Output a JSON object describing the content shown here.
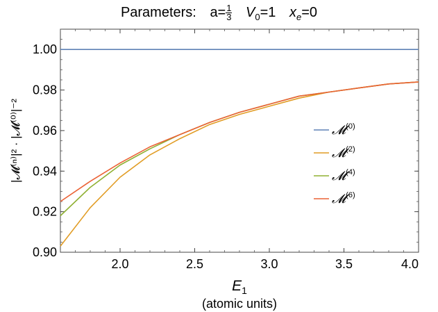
{
  "title": {
    "label": "Parameters:",
    "a_label": "a=",
    "a_num": "1",
    "a_den": "3",
    "v_sym": "V",
    "v_sub": "0",
    "v_val": "=1",
    "x_sym": "x",
    "x_sub": "e",
    "x_val": "=0"
  },
  "chart_data": {
    "type": "line",
    "xlabel": "E",
    "xlabel_sub": "1",
    "xlabel_units": "(atomic units)",
    "ylabel": "|𝓜⁽ⁿ⁾|² · |𝓜⁽⁰⁾|⁻²",
    "xlim": [
      1.6,
      4.0
    ],
    "ylim": [
      0.9,
      1.01
    ],
    "xticks": [
      "2.0",
      "2.5",
      "3.0",
      "3.5",
      "4.0"
    ],
    "yticks": [
      "0.90",
      "0.92",
      "0.94",
      "0.96",
      "0.98",
      "1.00"
    ],
    "legend_position": "right",
    "series": [
      {
        "name": "𝓜",
        "sup": "(0)",
        "color": "#5e81b5",
        "x": [
          1.6,
          4.0
        ],
        "y": [
          1.0,
          1.0
        ]
      },
      {
        "name": "𝓜",
        "sup": "(2)",
        "color": "#e19c24",
        "x": [
          1.6,
          1.8,
          2.0,
          2.2,
          2.4,
          2.6,
          2.8,
          3.0,
          3.2,
          3.4,
          3.6,
          3.8,
          4.0
        ],
        "y": [
          0.903,
          0.922,
          0.937,
          0.948,
          0.956,
          0.963,
          0.968,
          0.972,
          0.976,
          0.979,
          0.981,
          0.983,
          0.984
        ]
      },
      {
        "name": "𝓜",
        "sup": "(4)",
        "color": "#8fb032",
        "x": [
          1.6,
          1.8,
          2.0,
          2.2,
          2.4,
          2.6,
          2.8,
          3.0,
          3.2,
          3.4,
          3.6,
          3.8,
          4.0
        ],
        "y": [
          0.918,
          0.932,
          0.943,
          0.951,
          0.958,
          0.964,
          0.969,
          0.973,
          0.977,
          0.979,
          0.981,
          0.983,
          0.984
        ]
      },
      {
        "name": "𝓜",
        "sup": "(6)",
        "color": "#eb6235",
        "x": [
          1.6,
          1.8,
          2.0,
          2.2,
          2.4,
          2.6,
          2.8,
          3.0,
          3.2,
          3.4,
          3.6,
          3.8,
          4.0
        ],
        "y": [
          0.925,
          0.935,
          0.944,
          0.952,
          0.958,
          0.964,
          0.969,
          0.973,
          0.977,
          0.979,
          0.981,
          0.983,
          0.984
        ]
      }
    ]
  }
}
